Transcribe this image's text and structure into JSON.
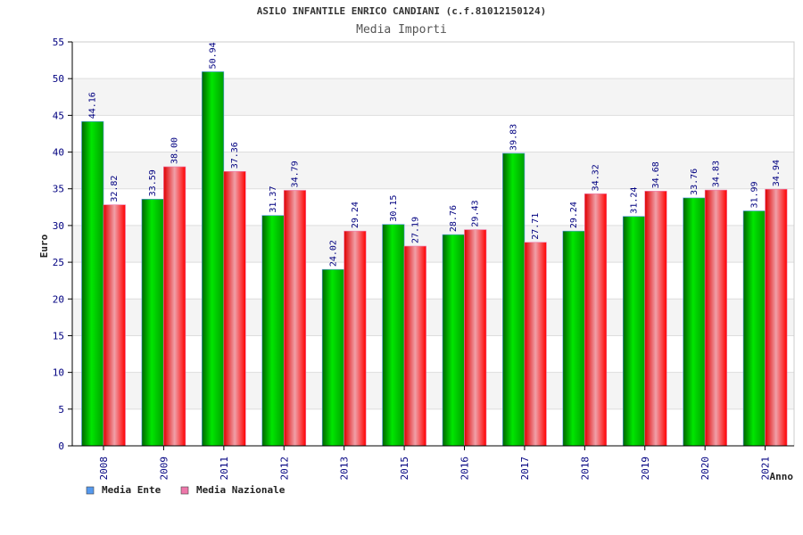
{
  "chart_data": {
    "type": "bar",
    "title": "ASILO INFANTILE ENRICO CANDIANI (c.f.81012150124)",
    "subtitle": "Media Importi",
    "xlabel": "Anno",
    "ylabel": "Euro",
    "ylim": [
      0,
      55
    ],
    "yticks": [
      "0",
      "5",
      "10",
      "15",
      "20",
      "25",
      "30",
      "35",
      "40",
      "45",
      "50",
      "55"
    ],
    "categories": [
      "2008",
      "2009",
      "2011",
      "2012",
      "2013",
      "2015",
      "2016",
      "2017",
      "2018",
      "2019",
      "2020",
      "2021"
    ],
    "series": [
      {
        "name": "Media Ente",
        "color": "#00b400",
        "values": [
          44.16,
          33.59,
          50.94,
          31.37,
          24.02,
          30.15,
          28.76,
          39.83,
          29.24,
          31.24,
          33.76,
          31.99
        ],
        "labels": [
          "44.16",
          "33.59",
          "50.94",
          "31.37",
          "24.02",
          "30.15",
          "28.76",
          "39.83",
          "29.24",
          "31.24",
          "33.76",
          "31.99"
        ]
      },
      {
        "name": "Media Nazionale",
        "color": "#ff0000",
        "values": [
          32.82,
          38.0,
          37.36,
          34.79,
          29.24,
          27.19,
          29.43,
          27.71,
          34.32,
          34.68,
          34.83,
          34.94
        ],
        "labels": [
          "32.82",
          "38.00",
          "37.36",
          "34.79",
          "29.24",
          "27.19",
          "29.43",
          "27.71",
          "34.32",
          "34.68",
          "34.83",
          "34.94"
        ]
      }
    ],
    "legend": {
      "placement": "bottom-left",
      "entries": [
        {
          "label": "Media Ente",
          "color": "#5599ee"
        },
        {
          "label": "Media Nazionale",
          "color": "#ee77aa"
        }
      ]
    },
    "grid": true
  }
}
